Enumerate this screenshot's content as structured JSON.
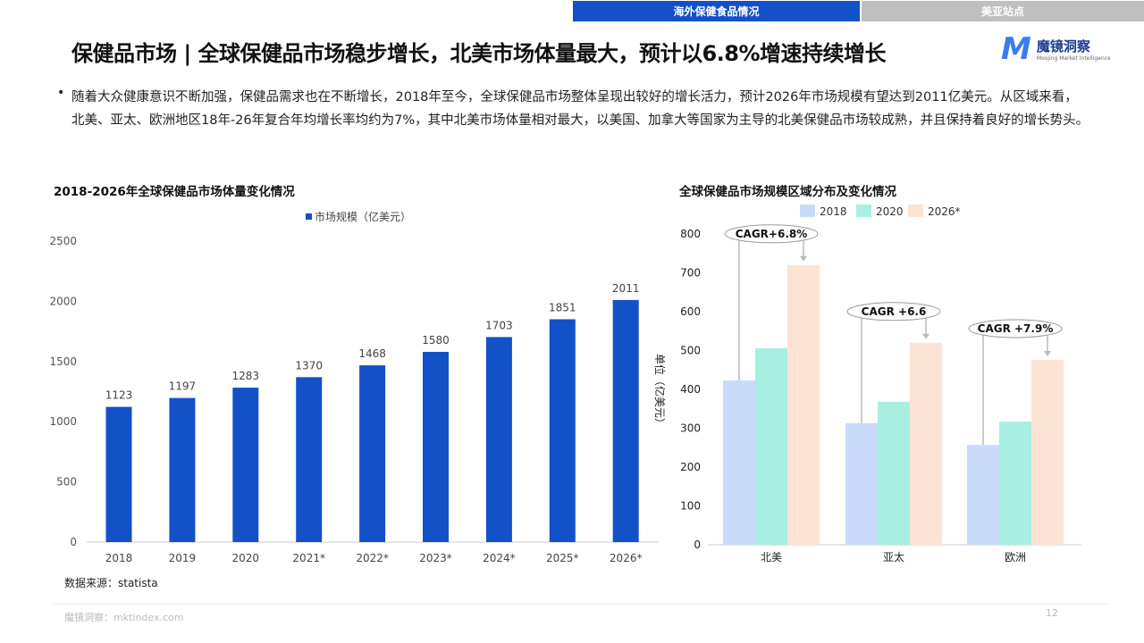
{
  "tabs": [
    {
      "label": "海外保健食品情况",
      "active": true
    },
    {
      "label": "美亚站点",
      "active": false
    }
  ],
  "title": "保健品市场 | 全球保健品市场稳步增长，北美市场体量最大，预计以6.8%增速持续增长",
  "logo": {
    "name": "魔镜洞察",
    "sub": "Moojing Market Intelligence"
  },
  "bullet": "•",
  "paragraph": "随着大众健康意识不断加强，保健品需求也在不断增长，2018年至今，全球保健品市场整体呈现出较好的增长活力，预计2026年市场规模有望达到2011亿美元。从区域来看，北美、亚太、欧洲地区18年-26年复合年均增长率均约为7%，其中北美市场体量相对最大，以美国、加拿大等国家为主导的北美保健品市场较成熟，并且保持着良好的增长势头。",
  "source": "数据来源：statista",
  "footer": "魔镜洞察：mktindex.com",
  "page": "12",
  "chart_data": [
    {
      "type": "bar",
      "title": "2018-2026年全球保健品市场体量变化情况",
      "categories": [
        "2018",
        "2019",
        "2020",
        "2021*",
        "2022*",
        "2023*",
        "2024*",
        "2025*",
        "2026*"
      ],
      "series": [
        {
          "name": "市场规模（亿美元）",
          "values": [
            1123,
            1197,
            1283,
            1370,
            1468,
            1580,
            1703,
            1851,
            2011
          ],
          "color": "#1351c8"
        }
      ],
      "ylim": [
        0,
        2500
      ],
      "yticks": [
        0,
        500,
        1000,
        1500,
        2000,
        2500
      ],
      "legend": "top",
      "grid": false
    },
    {
      "type": "bar",
      "title": "全球保健品市场规模区域分布及变化情况",
      "categories": [
        "北美",
        "亚太",
        "欧洲"
      ],
      "series": [
        {
          "name": "2018",
          "values": [
            423,
            313,
            257
          ],
          "color": "#c9dbfa"
        },
        {
          "name": "2020",
          "values": [
            506,
            368,
            317
          ],
          "color": "#a8efe2"
        },
        {
          "name": "2026*",
          "values": [
            720,
            520,
            476
          ],
          "color": "#fde3d4"
        }
      ],
      "ylabel": "单位（亿美元）",
      "ylim": [
        0,
        800
      ],
      "yticks": [
        0,
        100,
        200,
        300,
        400,
        500,
        600,
        700,
        800
      ],
      "annotations": [
        "CAGR+6.8%",
        "CAGR +6.6",
        "CAGR +7.9%"
      ],
      "legend": "top",
      "grid": false
    }
  ]
}
